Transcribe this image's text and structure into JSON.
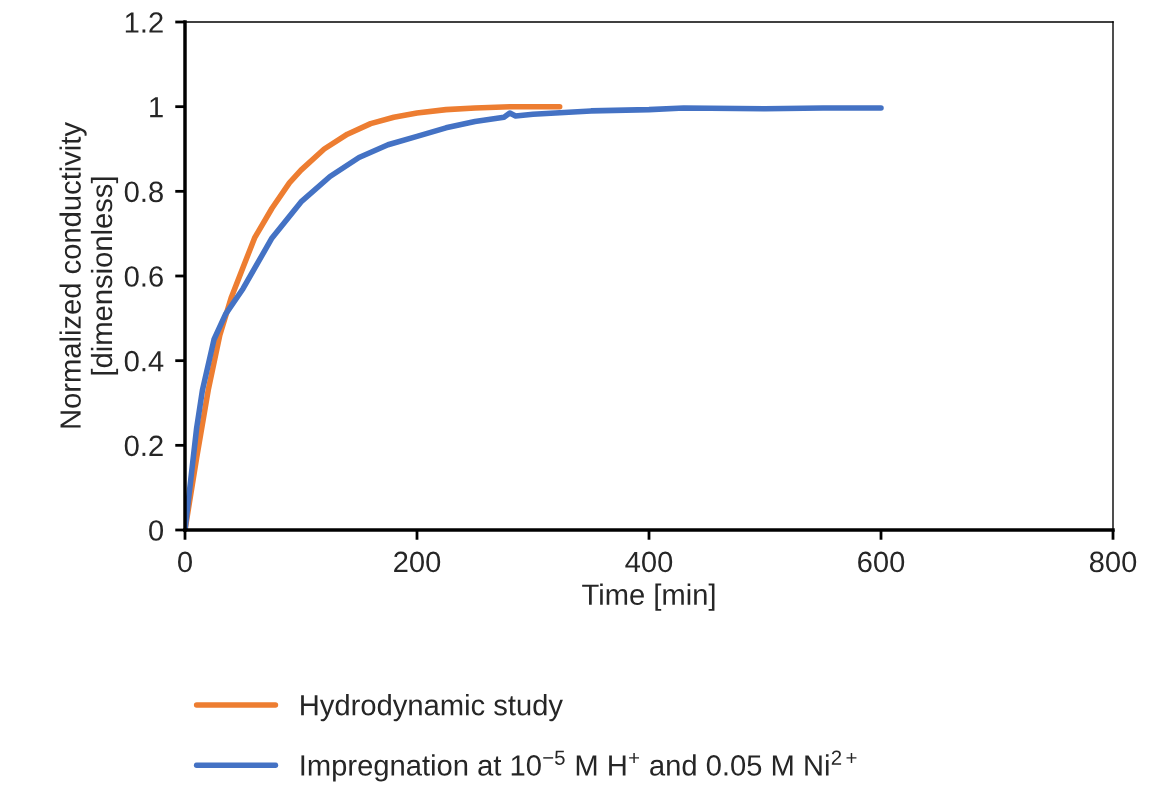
{
  "chart_data": {
    "type": "line",
    "xlabel": "Time [min]",
    "ylabel": "Normalized conductivity\n[dimensionless]",
    "xlim": [
      0,
      800
    ],
    "xticks": [
      0,
      200,
      400,
      600,
      800
    ],
    "ylim": [
      0,
      1.2
    ],
    "yticks": [
      0,
      0.2,
      0.4,
      0.6,
      0.8,
      1,
      1.2
    ],
    "grid": false,
    "legend": "bottom",
    "marker": "none",
    "line_style": "solid",
    "series": [
      {
        "name": "Hydrodynamic study",
        "color": "#ed7d31",
        "x": [
          0,
          10,
          20,
          30,
          40,
          50,
          60,
          75,
          90,
          100,
          120,
          140,
          160,
          180,
          200,
          225,
          250,
          280,
          323
        ],
        "values": [
          0,
          0.17,
          0.33,
          0.46,
          0.55,
          0.62,
          0.69,
          0.76,
          0.82,
          0.85,
          0.9,
          0.935,
          0.96,
          0.975,
          0.985,
          0.993,
          0.997,
          1.0,
          1.0
        ]
      },
      {
        "name": "Impregnation at 10$^{−5}$ M H$^{+}$ and 0.05 M Ni$^{2+}$",
        "color": "#4472c4",
        "x": [
          0,
          5,
          10,
          15,
          25,
          35,
          50,
          75,
          100,
          125,
          150,
          175,
          200,
          225,
          250,
          275,
          280,
          285,
          300,
          350,
          400,
          430,
          500,
          550,
          600
        ],
        "values": [
          0,
          0.12,
          0.24,
          0.33,
          0.45,
          0.51,
          0.57,
          0.69,
          0.775,
          0.835,
          0.88,
          0.91,
          0.93,
          0.95,
          0.965,
          0.975,
          0.985,
          0.978,
          0.982,
          0.99,
          0.993,
          0.997,
          0.995,
          0.997,
          0.997
        ]
      }
    ]
  }
}
